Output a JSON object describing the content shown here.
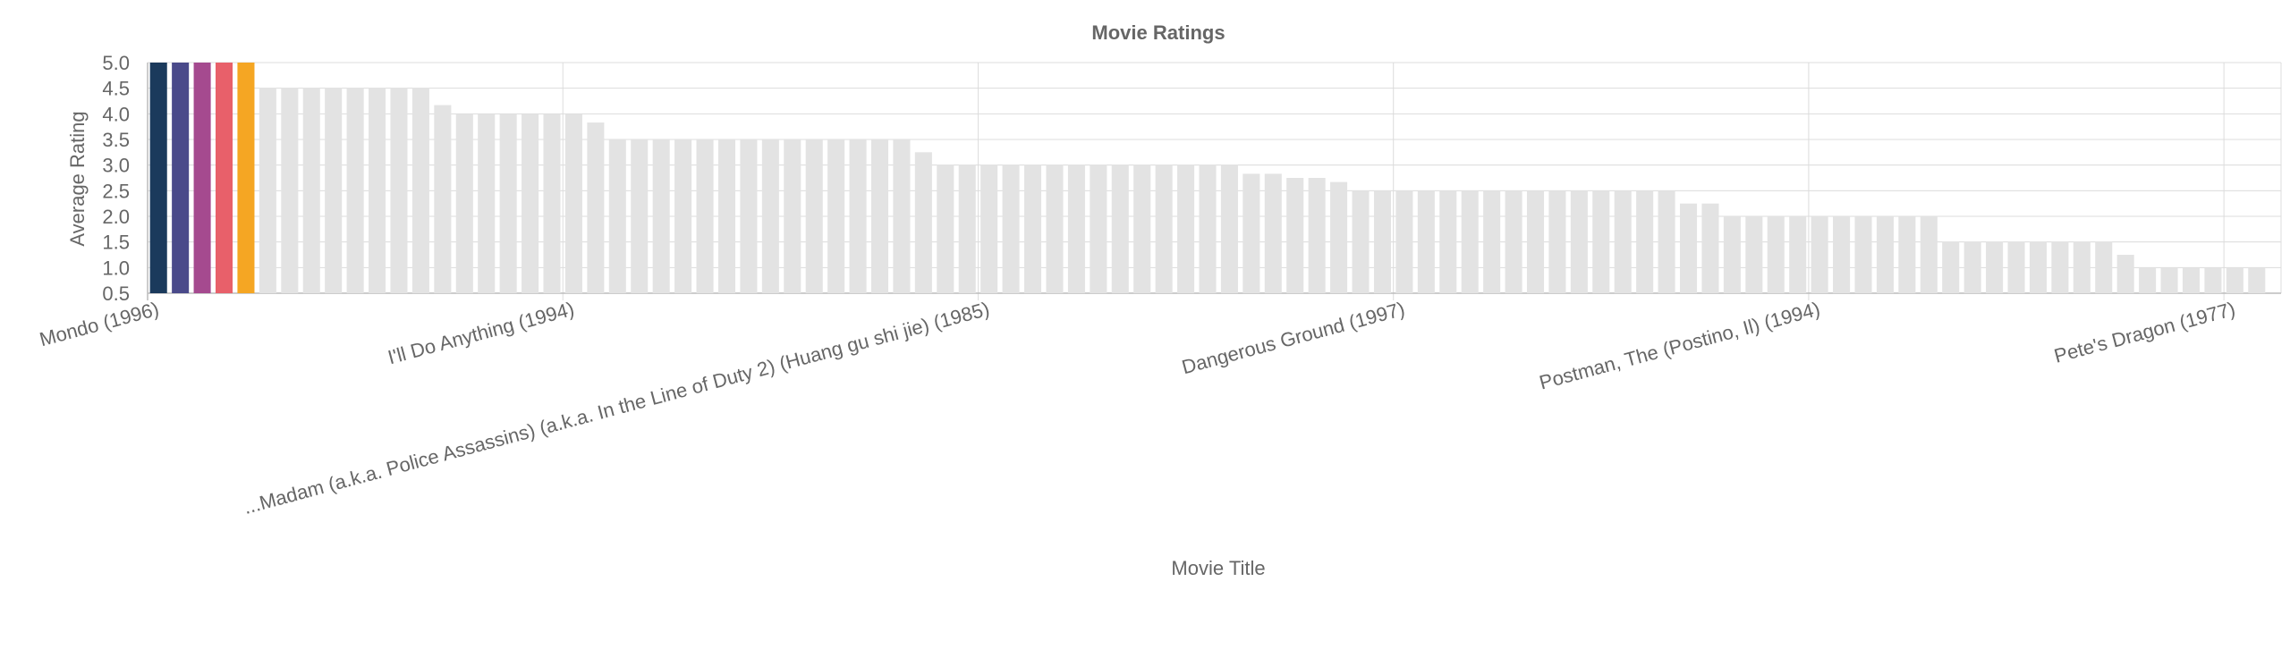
{
  "chart_data": {
    "type": "bar",
    "title": "Movie Ratings",
    "xlabel": "Movie Title",
    "ylabel": "Average Rating",
    "ylim": [
      0.5,
      5.0
    ],
    "y_ticks": [
      "0.5",
      "1.0",
      "1.5",
      "2.0",
      "2.5",
      "3.0",
      "3.5",
      "4.0",
      "4.5",
      "5.0"
    ],
    "x_tick_labels": [
      {
        "index": 0,
        "label": "Mondo (1996)"
      },
      {
        "index": 19,
        "label": "I'll Do Anything (1994)"
      },
      {
        "index": 38,
        "label": "...Madam (a.k.a. Police Assassins) (a.k.a. In the Line of Duty 2) (Huang gu shi jie) (1985)"
      },
      {
        "index": 57,
        "label": "Dangerous Ground (1997)"
      },
      {
        "index": 76,
        "label": "Postman, The (Postino, Il) (1994)"
      },
      {
        "index": 95,
        "label": "Pete's Dragon (1977)"
      }
    ],
    "grid": true,
    "legend": "none",
    "highlight_colors": [
      "#1b3a5c",
      "#4a4a8a",
      "#a54a8f",
      "#e8606a",
      "#f5a623"
    ],
    "default_bar_color": "#e3e3e3",
    "values": [
      5,
      5,
      5,
      5,
      5,
      4.5,
      4.5,
      4.5,
      4.5,
      4.5,
      4.5,
      4.5,
      4.5,
      4.17,
      4,
      4,
      4,
      4,
      4,
      4,
      3.83,
      3.5,
      3.5,
      3.5,
      3.5,
      3.5,
      3.5,
      3.5,
      3.5,
      3.5,
      3.5,
      3.5,
      3.5,
      3.5,
      3.5,
      3.25,
      3,
      3,
      3,
      3,
      3,
      3,
      3,
      3,
      3,
      3,
      3,
      3,
      3,
      3,
      2.83,
      2.83,
      2.75,
      2.75,
      2.67,
      2.5,
      2.5,
      2.5,
      2.5,
      2.5,
      2.5,
      2.5,
      2.5,
      2.5,
      2.5,
      2.5,
      2.5,
      2.5,
      2.5,
      2.5,
      2.25,
      2.25,
      2,
      2,
      2,
      2,
      2,
      2,
      2,
      2,
      2,
      2,
      1.5,
      1.5,
      1.5,
      1.5,
      1.5,
      1.5,
      1.5,
      1.5,
      1.25,
      1,
      1,
      1,
      1,
      1,
      1
    ]
  }
}
